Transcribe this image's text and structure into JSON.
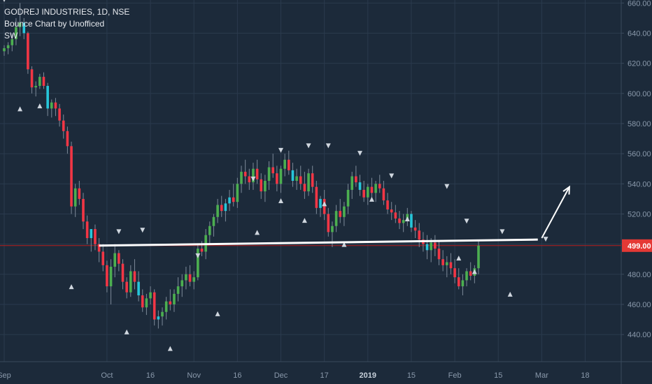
{
  "header": {
    "title": "GODREJ INDUSTRIES, 1D, NSE",
    "indicator": "Bounce Chart by Unofficed",
    "tag": "SW"
  },
  "colors": {
    "background": "#1c2a3a",
    "up": "#4caf50",
    "down": "#f23645",
    "neutral": "#26c6da",
    "text": "#e6e9ee",
    "axis_text": "#8a99ab",
    "grid": "#2a3a4d",
    "price_line": "#b71c1c",
    "support_line": "#ffffff",
    "marker": "#cfd6de"
  },
  "chart_data": {
    "type": "candlestick",
    "title": "GODREJ INDUSTRIES, 1D, NSE",
    "x_tick_labels": [
      "Sep",
      "Oct",
      "16",
      "Nov",
      "16",
      "Dec",
      "17",
      "2019",
      "15",
      "Feb",
      "15",
      "Mar",
      "18"
    ],
    "x_tick_index": [
      0,
      26,
      37,
      48,
      59,
      70,
      81,
      92,
      103,
      114,
      125,
      136,
      147
    ],
    "y_ticks": [
      440,
      460,
      480,
      500,
      520,
      540,
      560,
      580,
      600,
      620,
      640,
      660
    ],
    "y_tick_labels": [
      "440.00",
      "460.00",
      "480.00",
      "500.00",
      "520.00",
      "540.00",
      "560.00",
      "580.00",
      "600.00",
      "620.00",
      "640.00",
      "660.00"
    ],
    "ylim": [
      422,
      662
    ],
    "last_price": 499.0,
    "last_price_label": "499.00",
    "support_line": {
      "from": {
        "i": 24,
        "y": 499
      },
      "to": {
        "i": 135,
        "y": 503
      }
    },
    "arrow": {
      "from": {
        "i": 136,
        "y": 504
      },
      "to": {
        "i": 143,
        "y": 538
      }
    },
    "markers": {
      "down": [
        {
          "i": 0,
          "y": 662
        },
        {
          "i": 29,
          "y": 508
        },
        {
          "i": 35,
          "y": 509
        },
        {
          "i": 49,
          "y": 492
        },
        {
          "i": 63,
          "y": 543
        },
        {
          "i": 70,
          "y": 562
        },
        {
          "i": 77,
          "y": 565
        },
        {
          "i": 82,
          "y": 565
        },
        {
          "i": 90,
          "y": 560
        },
        {
          "i": 98,
          "y": 545
        },
        {
          "i": 112,
          "y": 538
        },
        {
          "i": 117,
          "y": 515
        },
        {
          "i": 126,
          "y": 508
        },
        {
          "i": 137,
          "y": 503
        }
      ],
      "up": [
        {
          "i": 4,
          "y": 590
        },
        {
          "i": 9,
          "y": 592
        },
        {
          "i": 17,
          "y": 472
        },
        {
          "i": 31,
          "y": 442
        },
        {
          "i": 42,
          "y": 431
        },
        {
          "i": 54,
          "y": 454
        },
        {
          "i": 64,
          "y": 508
        },
        {
          "i": 70,
          "y": 529
        },
        {
          "i": 76,
          "y": 516
        },
        {
          "i": 81,
          "y": 527
        },
        {
          "i": 86,
          "y": 500
        },
        {
          "i": 93,
          "y": 530
        },
        {
          "i": 102,
          "y": 517
        },
        {
          "i": 115,
          "y": 491
        },
        {
          "i": 119,
          "y": 482
        },
        {
          "i": 128,
          "y": 467
        }
      ]
    },
    "columns": [
      "open",
      "high",
      "low",
      "close"
    ],
    "ohlc": [
      [
        628,
        632,
        625,
        630
      ],
      [
        630,
        634,
        626,
        632
      ],
      [
        632,
        640,
        628,
        636
      ],
      [
        636,
        650,
        632,
        644
      ],
      [
        644,
        660,
        638,
        647
      ],
      [
        647,
        650,
        636,
        640
      ],
      [
        640,
        641,
        613,
        616
      ],
      [
        616,
        618,
        600,
        604
      ],
      [
        604,
        608,
        598,
        605
      ],
      [
        605,
        613,
        603,
        611
      ],
      [
        611,
        614,
        603,
        605
      ],
      [
        605,
        607,
        585,
        590
      ],
      [
        590,
        596,
        584,
        594
      ],
      [
        594,
        597,
        585,
        590
      ],
      [
        590,
        593,
        578,
        582
      ],
      [
        582,
        586,
        570,
        575
      ],
      [
        575,
        578,
        560,
        565
      ],
      [
        565,
        568,
        520,
        525
      ],
      [
        525,
        540,
        518,
        537
      ],
      [
        537,
        542,
        526,
        530
      ],
      [
        530,
        534,
        510,
        515
      ],
      [
        515,
        519,
        500,
        504
      ],
      [
        504,
        508,
        495,
        510
      ],
      [
        510,
        513,
        496,
        500
      ],
      [
        500,
        504,
        488,
        495
      ],
      [
        495,
        500,
        482,
        486
      ],
      [
        486,
        489,
        468,
        472
      ],
      [
        472,
        490,
        460,
        485
      ],
      [
        485,
        500,
        478,
        494
      ],
      [
        494,
        496,
        482,
        487
      ],
      [
        487,
        490,
        470,
        475
      ],
      [
        475,
        478,
        464,
        468
      ],
      [
        468,
        486,
        465,
        482
      ],
      [
        482,
        490,
        470,
        475
      ],
      [
        475,
        482,
        462,
        466
      ],
      [
        466,
        470,
        455,
        458
      ],
      [
        458,
        467,
        453,
        464
      ],
      [
        464,
        472,
        460,
        468
      ],
      [
        468,
        470,
        446,
        450
      ],
      [
        450,
        456,
        444,
        452
      ],
      [
        452,
        458,
        446,
        455
      ],
      [
        455,
        465,
        450,
        462
      ],
      [
        462,
        470,
        456,
        460
      ],
      [
        460,
        470,
        455,
        467
      ],
      [
        467,
        478,
        462,
        472
      ],
      [
        472,
        480,
        465,
        476
      ],
      [
        476,
        485,
        470,
        480
      ],
      [
        480,
        486,
        472,
        475
      ],
      [
        475,
        482,
        470,
        478
      ],
      [
        478,
        500,
        476,
        497
      ],
      [
        497,
        502,
        492,
        495
      ],
      [
        495,
        510,
        490,
        506
      ],
      [
        506,
        515,
        500,
        512
      ],
      [
        512,
        520,
        505,
        518
      ],
      [
        518,
        530,
        514,
        526
      ],
      [
        526,
        532,
        518,
        522
      ],
      [
        522,
        530,
        515,
        527
      ],
      [
        527,
        536,
        522,
        531
      ],
      [
        531,
        540,
        525,
        528
      ],
      [
        528,
        544,
        524,
        540
      ],
      [
        540,
        552,
        534,
        548
      ],
      [
        548,
        556,
        540,
        545
      ],
      [
        545,
        550,
        536,
        541
      ],
      [
        541,
        554,
        536,
        550
      ],
      [
        550,
        556,
        540,
        543
      ],
      [
        543,
        547,
        530,
        535
      ],
      [
        535,
        546,
        528,
        542
      ],
      [
        542,
        555,
        536,
        551
      ],
      [
        551,
        560,
        544,
        547
      ],
      [
        547,
        552,
        535,
        540
      ],
      [
        540,
        552,
        534,
        550
      ],
      [
        550,
        560,
        545,
        556
      ],
      [
        556,
        562,
        546,
        549
      ],
      [
        549,
        554,
        538,
        542
      ],
      [
        542,
        550,
        536,
        545
      ],
      [
        545,
        552,
        536,
        540
      ],
      [
        540,
        548,
        530,
        535
      ],
      [
        535,
        550,
        532,
        547
      ],
      [
        547,
        552,
        534,
        538
      ],
      [
        538,
        542,
        520,
        524
      ],
      [
        524,
        532,
        518,
        530
      ],
      [
        530,
        536,
        516,
        520
      ],
      [
        520,
        524,
        505,
        508
      ],
      [
        508,
        515,
        498,
        512
      ],
      [
        512,
        526,
        508,
        522
      ],
      [
        522,
        530,
        514,
        518
      ],
      [
        518,
        528,
        512,
        525
      ],
      [
        525,
        540,
        520,
        536
      ],
      [
        536,
        548,
        530,
        545
      ],
      [
        545,
        552,
        538,
        541
      ],
      [
        541,
        546,
        532,
        536
      ],
      [
        536,
        542,
        528,
        531
      ],
      [
        531,
        540,
        526,
        538
      ],
      [
        538,
        544,
        530,
        534
      ],
      [
        534,
        542,
        528,
        540
      ],
      [
        540,
        546,
        534,
        537
      ],
      [
        537,
        542,
        526,
        529
      ],
      [
        529,
        534,
        520,
        523
      ],
      [
        523,
        528,
        516,
        521
      ],
      [
        521,
        526,
        514,
        517
      ],
      [
        517,
        522,
        510,
        514
      ],
      [
        514,
        520,
        508,
        516
      ],
      [
        516,
        524,
        512,
        520
      ],
      [
        520,
        522,
        508,
        511
      ],
      [
        511,
        516,
        504,
        509
      ],
      [
        509,
        514,
        498,
        503
      ],
      [
        503,
        508,
        495,
        500
      ],
      [
        500,
        506,
        490,
        496
      ],
      [
        496,
        504,
        488,
        501
      ],
      [
        501,
        506,
        492,
        497
      ],
      [
        497,
        502,
        486,
        490
      ],
      [
        490,
        496,
        482,
        486
      ],
      [
        486,
        492,
        478,
        488
      ],
      [
        488,
        494,
        480,
        484
      ],
      [
        484,
        490,
        474,
        478
      ],
      [
        478,
        484,
        470,
        472
      ],
      [
        472,
        480,
        466,
        476
      ],
      [
        476,
        484,
        472,
        482
      ],
      [
        482,
        488,
        476,
        479
      ],
      [
        479,
        486,
        474,
        484
      ],
      [
        484,
        502,
        480,
        499
      ]
    ]
  }
}
